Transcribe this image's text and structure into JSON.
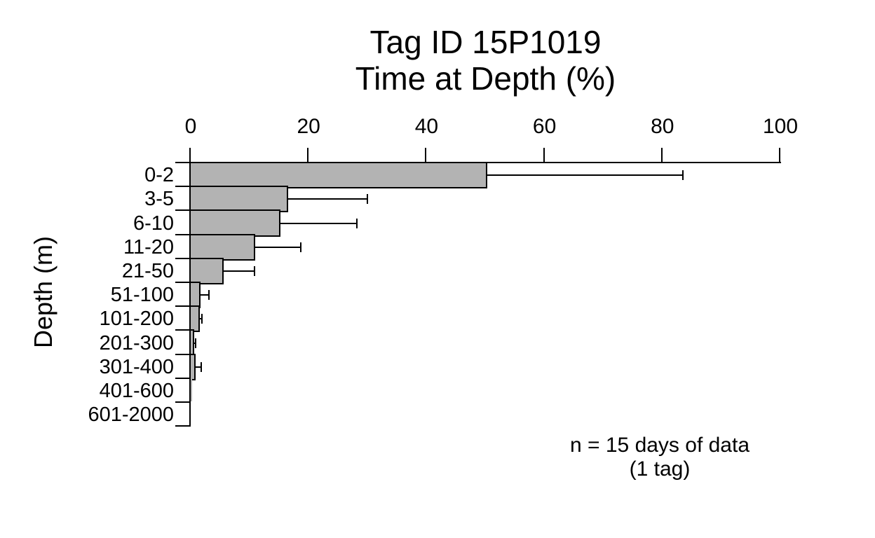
{
  "chart_data": {
    "type": "bar",
    "orientation": "horizontal",
    "title_lines": [
      "Tag ID 15P1019",
      "Time at Depth (%)"
    ],
    "xlabel": "Time at Depth (%)",
    "ylabel": "Depth (m)",
    "xlim": [
      0,
      100
    ],
    "x_ticks": [
      0,
      20,
      40,
      60,
      80,
      100
    ],
    "grid": false,
    "legend": null,
    "categories": [
      "0-2",
      "3-5",
      "6-10",
      "11-20",
      "21-50",
      "51-100",
      "101-200",
      "201-300",
      "301-400",
      "401-600",
      "601-2000"
    ],
    "values": [
      50,
      16.3,
      15,
      10.7,
      5.3,
      1.4,
      1.3,
      0.4,
      0.6,
      0.2,
      0.05
    ],
    "error_upper_end": [
      83.5,
      30,
      28.2,
      18.7,
      10.8,
      3.1,
      1.9,
      0.85,
      1.75,
      null,
      null
    ],
    "bar_fill": "#b3b3b3",
    "line_color": "#000000",
    "annotation_lines": [
      "n = 15 days of data",
      "(1 tag)"
    ]
  }
}
